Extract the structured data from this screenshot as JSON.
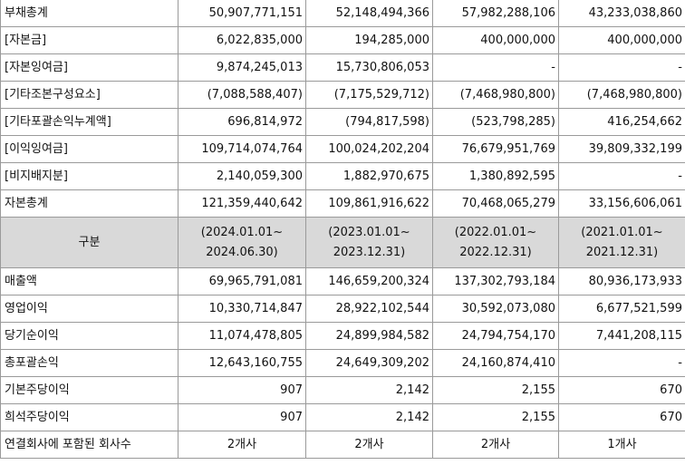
{
  "balance_rows": [
    {
      "label": "부채총계",
      "values": [
        "50,907,771,151",
        "52,148,494,366",
        "57,982,288,106",
        "43,233,038,860"
      ]
    },
    {
      "label": "[자본금]",
      "values": [
        "6,022,835,000",
        "194,285,000",
        "400,000,000",
        "400,000,000"
      ]
    },
    {
      "label": "[자본잉여금]",
      "values": [
        "9,874,245,013",
        "15,730,806,053",
        "-",
        "-"
      ]
    },
    {
      "label": "[기타조본구성요소]",
      "values": [
        "(7,088,588,407)",
        "(7,175,529,712)",
        "(7,468,980,800)",
        "(7,468,980,800)"
      ]
    },
    {
      "label": "[기타포괄손익누계액]",
      "values": [
        "696,814,972",
        "(794,817,598)",
        "(523,798,285)",
        "416,254,662"
      ]
    },
    {
      "label": "[이익잉여금]",
      "values": [
        "109,714,074,764",
        "100,024,202,204",
        "76,679,951,769",
        "39,809,332,199"
      ]
    },
    {
      "label": "[비지배지분]",
      "values": [
        "2,140,059,300",
        "1,882,970,675",
        "1,380,892,595",
        "-"
      ]
    },
    {
      "label": "자본총계",
      "values": [
        "121,359,440,642",
        "109,861,916,622",
        "70,468,065,279",
        "33,156,606,061"
      ]
    }
  ],
  "period_header": {
    "label": "구분",
    "periods": [
      {
        "start": "(2024.01.01~",
        "end": "2024.06.30)"
      },
      {
        "start": "(2023.01.01~",
        "end": "2023.12.31)"
      },
      {
        "start": "(2022.01.01~",
        "end": "2022.12.31)"
      },
      {
        "start": "(2021.01.01~",
        "end": "2021.12.31)"
      }
    ]
  },
  "income_rows": [
    {
      "label": "매출액",
      "values": [
        "69,965,791,081",
        "146,659,200,324",
        "137,302,793,184",
        "80,936,173,933"
      ]
    },
    {
      "label": "영업이익",
      "values": [
        "10,330,714,847",
        "28,922,102,544",
        "30,592,073,080",
        "6,677,521,599"
      ]
    },
    {
      "label": "당기순이익",
      "values": [
        "11,074,478,805",
        "24,899,984,582",
        "24,794,754,170",
        "7,441,208,115"
      ]
    },
    {
      "label": "총포괄손익",
      "values": [
        "12,643,160,755",
        "24,649,309,202",
        "24,160,874,410",
        "-"
      ]
    },
    {
      "label": "기본주당이익",
      "values": [
        "907",
        "2,142",
        "2,155",
        "670"
      ]
    },
    {
      "label": "희석주당이익",
      "values": [
        "907",
        "2,142",
        "2,155",
        "670"
      ]
    }
  ],
  "subsidiary_row": {
    "label": "연결회사에 포함된 회사수",
    "values": [
      "2개사",
      "2개사",
      "2개사",
      "1개사"
    ]
  },
  "colors": {
    "header_bg": "#d9d9d9",
    "border": "#9a9a9a"
  }
}
